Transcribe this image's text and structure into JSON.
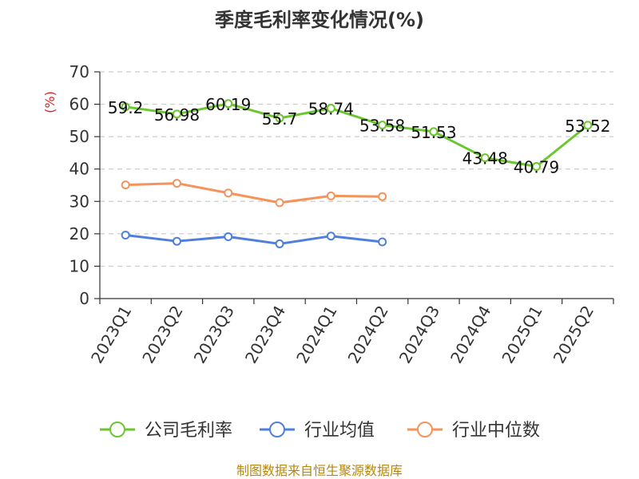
{
  "chart_data": {
    "type": "line",
    "title": "季度毛利率变化情况(%)",
    "unit_label": "(%)",
    "categories": [
      "2023Q1",
      "2023Q2",
      "2023Q3",
      "2023Q4",
      "2024Q1",
      "2024Q2",
      "2024Q3",
      "2024Q4",
      "2025Q1",
      "2025Q2"
    ],
    "ylim": [
      0,
      70
    ],
    "yticks": [
      0,
      10,
      20,
      30,
      40,
      50,
      60,
      70
    ],
    "grid": true,
    "legend_position": "bottom",
    "series": [
      {
        "name": "公司毛利率",
        "color": "#6cc62f",
        "values": [
          59.2,
          56.98,
          60.19,
          55.7,
          58.74,
          53.58,
          51.53,
          43.48,
          40.79,
          53.52
        ],
        "labels": [
          "59.2",
          "56.98",
          "60.19",
          "55.7",
          "58.74",
          "53.58",
          "51.53",
          "43.48",
          "40.79",
          "53.52"
        ]
      },
      {
        "name": "行业均值",
        "color": "#4f7fdc",
        "values": [
          19.6,
          17.7,
          19.1,
          16.9,
          19.3,
          17.5,
          null,
          null,
          null,
          null
        ]
      },
      {
        "name": "行业中位数",
        "color": "#f5935a",
        "values": [
          35.1,
          35.6,
          32.6,
          29.6,
          31.7,
          31.5,
          null,
          null,
          null,
          null
        ]
      }
    ],
    "source": "制图数据来自恒生聚源数据库"
  }
}
